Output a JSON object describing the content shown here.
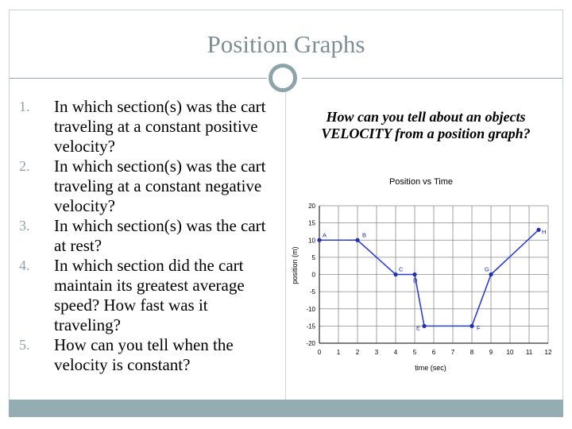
{
  "slide": {
    "title": "Position Graphs",
    "side_question": "How can you tell about an objects VELOCITY from a position graph?"
  },
  "questions": [
    {
      "num": "1.",
      "text": "In which section(s) was the cart traveling at a constant positive velocity?"
    },
    {
      "num": "2.",
      "text": "In which section(s) was the cart traveling at a constant negative velocity?"
    },
    {
      "num": "3.",
      "text": "In which section(s) was the cart at rest?"
    },
    {
      "num": "4.",
      "text": "In which section did the cart maintain its greatest average speed? How fast was it traveling?"
    },
    {
      "num": "5.",
      "text": "How can you tell when the velocity is constant?"
    }
  ],
  "colors": {
    "accent": "#8fa3ab",
    "footer": "#93adb3",
    "line": "#2a3fd1",
    "point": "#1f2fb0"
  },
  "chart_data": {
    "type": "line",
    "title": "Position vs Time",
    "xlabel": "time (sec)",
    "ylabel": "position (m)",
    "xlim": [
      0,
      12
    ],
    "ylim": [
      -20,
      20
    ],
    "grid": true,
    "x_ticks": [
      "0",
      "1",
      "2",
      "3",
      "4",
      "5",
      "6",
      "7",
      "8",
      "9",
      "10",
      "11",
      "12"
    ],
    "y_ticks": [
      {
        "value": 20,
        "label": "20"
      },
      {
        "value": 15,
        "label": "15"
      },
      {
        "value": 10,
        "label": "10"
      },
      {
        "value": 5,
        "label": "5"
      },
      {
        "value": 0,
        "label": "0"
      },
      {
        "value": -5,
        "label": "-5"
      },
      {
        "value": -10,
        "label": "-10"
      },
      {
        "value": -15,
        "label": "-15"
      },
      {
        "value": -20,
        "label": "-20"
      }
    ],
    "points": [
      {
        "label": "A",
        "x": 0,
        "y": 10
      },
      {
        "label": "B",
        "x": 2,
        "y": 10
      },
      {
        "label": "C",
        "x": 4,
        "y": 0
      },
      {
        "label": "D",
        "x": 5,
        "y": 0
      },
      {
        "label": "E",
        "x": 5.5,
        "y": -15
      },
      {
        "label": "F",
        "x": 8,
        "y": -15
      },
      {
        "label": "G",
        "x": 9,
        "y": 0
      },
      {
        "label": "H",
        "x": 11.5,
        "y": 13
      }
    ]
  }
}
